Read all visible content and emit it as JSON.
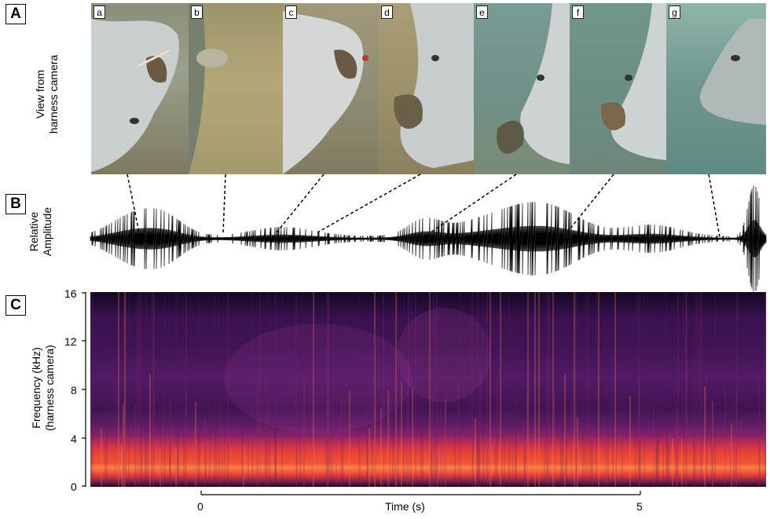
{
  "figure": {
    "panels": {
      "a": "A",
      "b": "B",
      "c": "C"
    },
    "panel_a": {
      "ylabel_line1": "View from",
      "ylabel_line2": "harness camera",
      "photo_tags": [
        "a",
        "b",
        "c",
        "d",
        "e",
        "f",
        "g"
      ]
    },
    "panel_b": {
      "ylabel_line1": "Relative",
      "ylabel_line2": "Amplitude"
    },
    "panel_c": {
      "ylabel_line1": "Frequency (kHz)",
      "ylabel_line2": "(harness camera)",
      "yticks": [
        "16",
        "12",
        "8",
        "4",
        "0"
      ]
    },
    "time_axis": {
      "label": "Time (s)",
      "ticks": [
        "0",
        "5"
      ]
    }
  },
  "chart_data": {
    "type": "heatmap",
    "title": "",
    "xlabel": "Time (s)",
    "ylabel": "Frequency (kHz) (harness camera)",
    "ylim": [
      0,
      16
    ],
    "yticks": [
      0,
      4,
      8,
      12,
      16
    ],
    "xticks": [
      0,
      5
    ]
  }
}
